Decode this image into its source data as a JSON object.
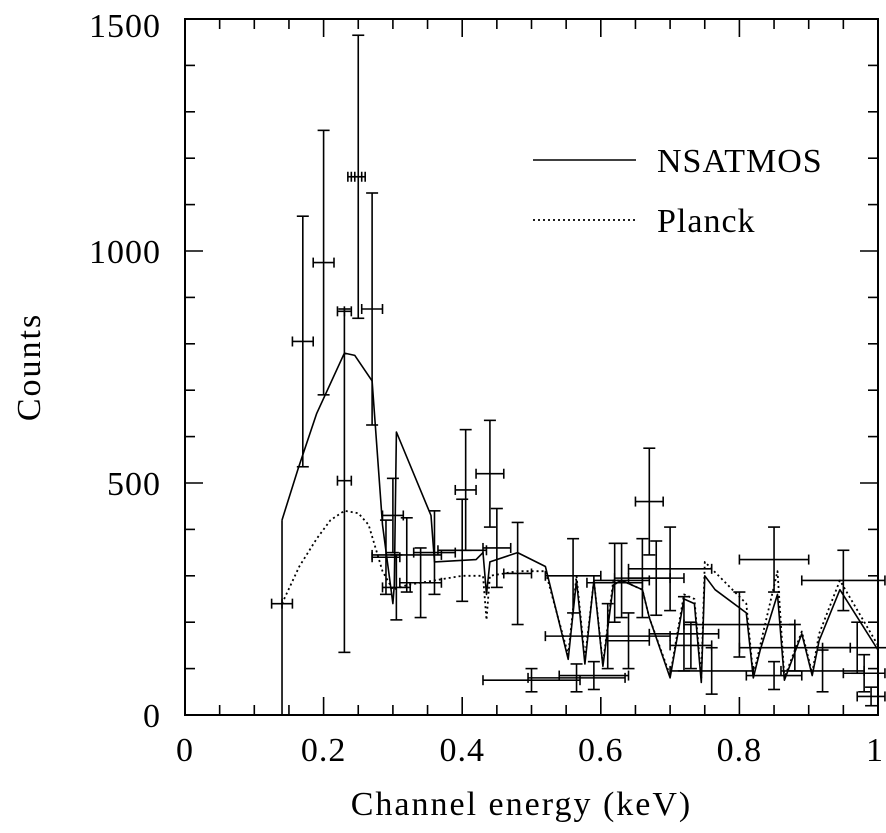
{
  "chart_data": {
    "type": "scatter",
    "title": "",
    "xlabel": "Channel energy (keV)",
    "ylabel": "Counts",
    "xlim": [
      0,
      1
    ],
    "ylim": [
      0,
      1500
    ],
    "x_ticks": [
      0,
      0.2,
      0.4,
      0.6,
      0.8,
      1
    ],
    "x_tick_labels": [
      "0",
      "0.2",
      "0.4",
      "0.6",
      "0.8",
      "1"
    ],
    "y_ticks": [
      0,
      500,
      1000,
      1500
    ],
    "y_tick_labels": [
      "0",
      "500",
      "1000",
      "1500"
    ],
    "grid": false,
    "legend_position": "top-right",
    "series": [
      {
        "name": "NSATMOS",
        "style": "solid",
        "x": [
          0.14,
          0.163,
          0.19,
          0.23,
          0.245,
          0.27,
          0.285,
          0.3,
          0.302,
          0.305,
          0.355,
          0.36,
          0.42,
          0.43,
          0.435,
          0.44,
          0.47,
          0.48,
          0.52,
          0.553,
          0.565,
          0.577,
          0.59,
          0.603,
          0.618,
          0.63,
          0.66,
          0.67,
          0.7,
          0.72,
          0.735,
          0.745,
          0.75,
          0.765,
          0.81,
          0.82,
          0.83,
          0.855,
          0.865,
          0.89,
          0.905,
          0.915,
          0.945,
          1.0
        ],
        "y": [
          420,
          530,
          650,
          780,
          775,
          720,
          410,
          240,
          280,
          610,
          430,
          330,
          335,
          350,
          260,
          330,
          345,
          350,
          320,
          120,
          290,
          110,
          290,
          105,
          280,
          290,
          270,
          210,
          80,
          250,
          240,
          70,
          300,
          270,
          220,
          80,
          140,
          260,
          75,
          175,
          85,
          160,
          270,
          140
        ]
      },
      {
        "name": "Planck",
        "style": "dotted",
        "x": [
          0.14,
          0.165,
          0.19,
          0.21,
          0.23,
          0.25,
          0.265,
          0.285,
          0.3,
          0.32,
          0.36,
          0.4,
          0.43,
          0.435,
          0.44,
          0.48,
          0.52,
          0.553,
          0.565,
          0.577,
          0.59,
          0.603,
          0.618,
          0.63,
          0.66,
          0.67,
          0.7,
          0.72,
          0.735,
          0.745,
          0.75,
          0.81,
          0.82,
          0.83,
          0.855,
          0.865,
          0.89,
          0.905,
          0.915,
          0.945,
          1.0
        ],
        "y": [
          240,
          320,
          380,
          420,
          440,
          435,
          410,
          310,
          270,
          280,
          290,
          300,
          300,
          205,
          300,
          310,
          310,
          130,
          300,
          120,
          290,
          110,
          290,
          290,
          270,
          210,
          85,
          260,
          250,
          80,
          330,
          240,
          85,
          150,
          310,
          80,
          180,
          90,
          175,
          290,
          150
        ]
      }
    ],
    "data_points": {
      "name": "data",
      "x": [
        0.14,
        0.17,
        0.2,
        0.23,
        0.23,
        0.245,
        0.25,
        0.27,
        0.29,
        0.3,
        0.305,
        0.32,
        0.34,
        0.36,
        0.4,
        0.405,
        0.44,
        0.45,
        0.48,
        0.5,
        0.56,
        0.565,
        0.59,
        0.61,
        0.62,
        0.63,
        0.64,
        0.66,
        0.67,
        0.68,
        0.7,
        0.72,
        0.73,
        0.76,
        0.8,
        0.85,
        0.85,
        0.88,
        0.92,
        0.95,
        0.97,
        0.98,
        0.99
      ],
      "xerr": [
        0.015,
        0.015,
        0.015,
        0.01,
        0.01,
        0.01,
        0.01,
        0.015,
        0.02,
        0.015,
        0.02,
        0.05,
        0.03,
        0.03,
        0.035,
        0.015,
        0.02,
        0.02,
        0.02,
        0.07,
        0.04,
        0.07,
        0.05,
        0.09,
        0.04,
        0.04,
        0.03,
        0.04,
        0.02,
        0.04,
        0.06,
        0.05,
        0.03,
        0.06,
        0.08,
        0.05,
        0.04,
        0.08,
        0.06,
        0.06,
        0.05,
        0.03,
        0.02
      ],
      "y": [
        240,
        805,
        975,
        505,
        870,
        1160,
        1160,
        875,
        340,
        430,
        275,
        345,
        285,
        350,
        355,
        485,
        520,
        360,
        305,
        75,
        300,
        80,
        85,
        170,
        285,
        290,
        160,
        295,
        460,
        295,
        315,
        175,
        150,
        95,
        195,
        335,
        85,
        145,
        95,
        290,
        145,
        90,
        40
      ],
      "yerr": [
        0,
        270,
        285,
        370,
        0,
        0,
        305,
        250,
        80,
        80,
        70,
        80,
        75,
        90,
        110,
        130,
        115,
        85,
        110,
        25,
        80,
        30,
        30,
        70,
        85,
        80,
        60,
        85,
        115,
        80,
        90,
        80,
        50,
        50,
        70,
        70,
        30,
        50,
        45,
        65,
        55,
        40,
        20
      ]
    }
  }
}
